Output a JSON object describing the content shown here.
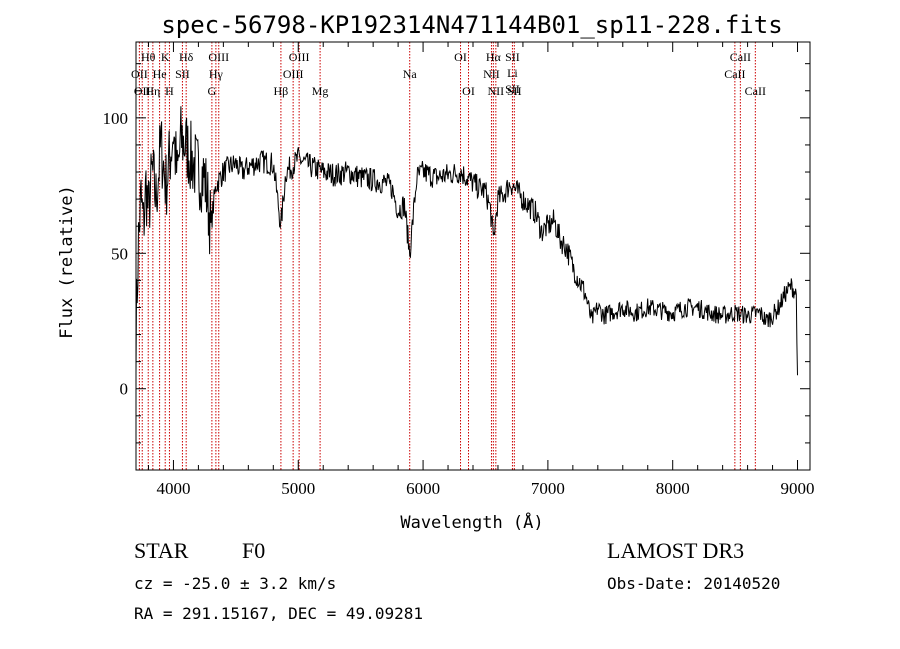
{
  "chart_data": {
    "type": "line",
    "title": "spec-56798-KP192314N471144B01_sp11-228.fits",
    "xlabel": "Wavelength (Å)",
    "ylabel": "Flux (relative)",
    "xlim": [
      3700,
      9100
    ],
    "ylim": [
      -30,
      128
    ],
    "x_ticks": [
      4000,
      5000,
      6000,
      7000,
      8000,
      9000
    ],
    "y_ticks": [
      0,
      50,
      100
    ],
    "grid": false,
    "series": [
      {
        "x": [
          3700,
          3720,
          3740,
          3760,
          3780,
          3800,
          3830,
          3860,
          3900,
          3940,
          3970,
          4000,
          4030,
          4060,
          4100,
          4140,
          4200,
          4250,
          4300,
          4340,
          4400,
          4450,
          4500,
          4550,
          4600,
          4700,
          4800,
          4861,
          4900,
          4950,
          5000,
          5100,
          5200,
          5300,
          5400,
          5500,
          5600,
          5700,
          5750,
          5800,
          5850,
          5893,
          5950,
          6000,
          6100,
          6200,
          6300,
          6350,
          6400,
          6450,
          6500,
          6540,
          6563,
          6600,
          6650,
          6700,
          6750,
          6800,
          6900,
          6950,
          7000,
          7050,
          7100,
          7150,
          7200,
          7250,
          7300,
          7350,
          7400,
          7450,
          7500,
          7600,
          7700,
          7800,
          7900,
          8000,
          8100,
          8200,
          8300,
          8400,
          8500,
          8600,
          8700,
          8750,
          8800,
          8850,
          8900,
          8950,
          8990,
          9000
        ],
        "y": [
          20,
          55,
          70,
          60,
          75,
          65,
          80,
          70,
          90,
          75,
          85,
          95,
          78,
          92,
          90,
          85,
          80,
          78,
          60,
          75,
          80,
          82,
          83,
          80,
          82,
          84,
          83,
          60,
          80,
          82,
          85,
          82,
          80,
          79,
          80,
          78,
          77,
          76,
          74,
          66,
          68,
          50,
          78,
          80,
          78,
          79,
          80,
          78,
          76,
          74,
          73,
          66,
          55,
          70,
          72,
          76,
          73,
          70,
          65,
          58,
          60,
          62,
          55,
          52,
          45,
          40,
          35,
          25,
          30,
          27,
          28,
          30,
          28,
          30,
          29,
          28,
          30,
          30,
          28,
          27,
          28,
          27,
          28,
          25,
          27,
          30,
          35,
          38,
          35,
          5
        ]
      }
    ],
    "line_labels": [
      {
        "wl": 3727,
        "labels": [
          "OII"
        ],
        "row": 2
      },
      {
        "wl": 3750,
        "labels": [
          "OII"
        ],
        "row": 3
      },
      {
        "wl": 3798,
        "labels": [
          "Hθ"
        ],
        "row": 1
      },
      {
        "wl": 3835,
        "labels": [
          "Hη"
        ],
        "row": 3
      },
      {
        "wl": 3889,
        "labels": [
          "He"
        ],
        "row": 2
      },
      {
        "wl": 3934,
        "labels": [
          "K"
        ],
        "row": 1
      },
      {
        "wl": 3968,
        "labels": [
          "H"
        ],
        "row": 3
      },
      {
        "wl": 4072,
        "labels": [
          "SII"
        ],
        "row": 2
      },
      {
        "wl": 4102,
        "labels": [
          "Hδ"
        ],
        "row": 1
      },
      {
        "wl": 4308,
        "labels": [
          "G"
        ],
        "row": 3
      },
      {
        "wl": 4340,
        "labels": [
          "Hγ"
        ],
        "row": 2
      },
      {
        "wl": 4363,
        "labels": [
          "OIII"
        ],
        "row": 1
      },
      {
        "wl": 4861,
        "labels": [
          "Hβ"
        ],
        "row": 3
      },
      {
        "wl": 4959,
        "labels": [
          "OIII"
        ],
        "row": 2
      },
      {
        "wl": 5007,
        "labels": [
          "OIII"
        ],
        "row": 1
      },
      {
        "wl": 5175,
        "labels": [
          "Mg"
        ],
        "row": 3
      },
      {
        "wl": 5893,
        "labels": [
          "Na"
        ],
        "row": 2
      },
      {
        "wl": 6300,
        "labels": [
          "OI"
        ],
        "row": 1
      },
      {
        "wl": 6364,
        "labels": [
          "OI"
        ],
        "row": 3
      },
      {
        "wl": 6548,
        "labels": [
          "NII"
        ],
        "row": 2
      },
      {
        "wl": 6563,
        "labels": [
          "Hα"
        ],
        "row": 1
      },
      {
        "wl": 6583,
        "labels": [
          "NII"
        ],
        "row": 3
      },
      {
        "wl": 6716,
        "labels": [
          "SII",
          "Li",
          "SII"
        ],
        "row": 1
      },
      {
        "wl": 6731,
        "labels": [
          "SII"
        ],
        "row": 3
      },
      {
        "wl": 8498,
        "labels": [
          "CaII"
        ],
        "row": 2
      },
      {
        "wl": 8542,
        "labels": [
          "CaII"
        ],
        "row": 1
      },
      {
        "wl": 8662,
        "labels": [
          "CaII"
        ],
        "row": 3
      }
    ]
  },
  "info": {
    "object_class": "STAR",
    "subclass": "F0",
    "survey": "LAMOST DR3",
    "redshift": "cz = -25.0 ± 3.2 km/s",
    "obs_date": "Obs-Date: 20140520",
    "coords": "RA = 291.15167, DEC =  49.09281"
  },
  "colors": {
    "spectrum": "#000000",
    "marker_lines": "#cc0000",
    "axes": "#000000",
    "background": "#ffffff"
  }
}
